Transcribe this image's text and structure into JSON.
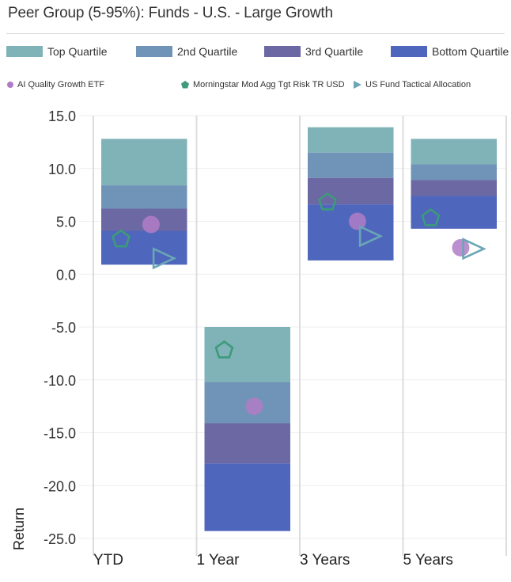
{
  "header": {
    "title": "Peer Group (5-95%): Funds - U.S. - Large Growth"
  },
  "legend": {
    "quartiles": [
      {
        "label": "Top Quartile",
        "color": "#7fb3b8"
      },
      {
        "label": "2nd Quartile",
        "color": "#7093b8"
      },
      {
        "label": "3rd Quartile",
        "color": "#6b68a3"
      },
      {
        "label": "Bottom Quartile",
        "color": "#4e66bb"
      }
    ],
    "markers": [
      {
        "label": "AI Quality Growth ETF",
        "shape": "circle",
        "color": "#b07cc6"
      },
      {
        "label": "Morningstar Mod Agg Tgt Risk TR USD",
        "shape": "pentagon",
        "color": "#3d9a7a"
      },
      {
        "label": "US Fund Tactical Allocation",
        "shape": "triangle",
        "color": "#6aa6b5"
      }
    ]
  },
  "chart_data": {
    "type": "bar",
    "subtype": "floating-quartile-ranges",
    "ylabel": "Return",
    "ylim": [
      -25,
      15
    ],
    "yticks": [
      "15.0",
      "10.0",
      "5.0",
      "0.0",
      "-5.0",
      "-10.0",
      "-15.0",
      "-20.0",
      "-25.0"
    ],
    "ytick_values": [
      15,
      10,
      5,
      0,
      -5,
      -10,
      -15,
      -20,
      -25
    ],
    "categories": [
      "YTD",
      "1 Year",
      "3 Years",
      "5 Years"
    ],
    "quartile_bounds": [
      [
        12.8,
        8.4,
        6.2,
        4.1,
        0.9
      ],
      [
        -5.0,
        -10.2,
        -14.1,
        -17.9,
        -24.3
      ],
      [
        13.9,
        11.5,
        9.1,
        6.6,
        1.3
      ],
      [
        12.8,
        10.4,
        8.9,
        7.4,
        4.3
      ]
    ],
    "series": [
      {
        "name": "AI Quality Growth ETF",
        "values": [
          4.7,
          -12.5,
          5.0,
          2.5
        ]
      },
      {
        "name": "Morningstar Mod Agg Tgt Risk TR USD",
        "values": [
          3.3,
          -7.2,
          6.8,
          5.3
        ]
      },
      {
        "name": "US Fund Tactical Allocation",
        "values": [
          1.5,
          null,
          3.6,
          2.4
        ]
      }
    ],
    "grid": true
  }
}
